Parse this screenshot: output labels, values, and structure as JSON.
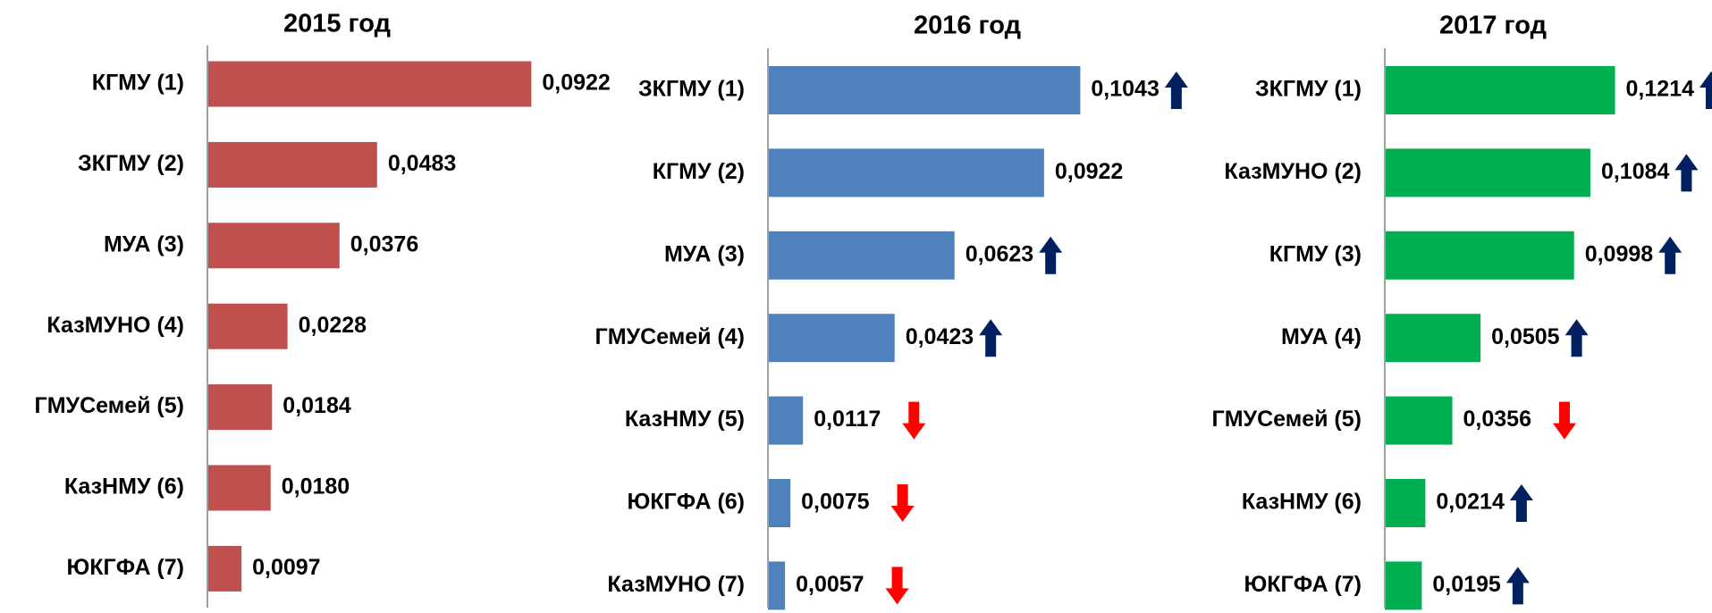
{
  "chart_data": [
    {
      "type": "bar",
      "orientation": "horizontal",
      "title": "2015 год",
      "categories": [
        "КГМУ (1)",
        "ЗКГМУ (2)",
        "МУА (3)",
        "КазМУНО (4)",
        "ГМУСемей (5)",
        "КазНМУ (6)",
        "ЮКГФА (7)"
      ],
      "values": [
        0.0922,
        0.0483,
        0.0376,
        0.0228,
        0.0184,
        0.018,
        0.0097
      ],
      "value_labels": [
        "0,0922",
        "0,0483",
        "0,0376",
        "0,0228",
        "0,0184",
        "0,0180",
        "0,0097"
      ],
      "color": "#c0504d",
      "xlim": [
        0,
        0.1
      ]
    },
    {
      "type": "bar",
      "orientation": "horizontal",
      "title": "2016 год",
      "categories": [
        "ЗКГМУ (1)",
        "КГМУ (2)",
        "МУА (3)",
        "ГМУСемей (4)",
        "КазНМУ (5)",
        "ЮКГФА (6)",
        "КазМУНО (7)"
      ],
      "values": [
        0.1043,
        0.0922,
        0.0623,
        0.0423,
        0.0117,
        0.0075,
        0.0057
      ],
      "value_labels": [
        "0,1043",
        "0,0922",
        "0,0623",
        "0,0423",
        "0,0117",
        "0,0075",
        "0,0057"
      ],
      "color": "#4f81bd",
      "xlim": [
        0,
        0.12
      ],
      "arrows": [
        "up",
        null,
        "up",
        "up",
        "down",
        "down",
        "down"
      ],
      "arrow_colors": {
        "up": "#002060",
        "down": "#ff0000"
      }
    },
    {
      "type": "bar",
      "orientation": "horizontal",
      "title": "2017 год",
      "categories": [
        "ЗКГМУ (1)",
        "КазМУНО (2)",
        "КГМУ (3)",
        "МУА (4)",
        "ГМУСемей (5)",
        "КазНМУ (6)",
        "ЮКГФА (7)"
      ],
      "values": [
        0.1214,
        0.1084,
        0.0998,
        0.0505,
        0.0356,
        0.0214,
        0.0195
      ],
      "value_labels": [
        "0,1214",
        "0,1084",
        "0,0998",
        "0,0505",
        "0,0356",
        "0,0214",
        "0,0195"
      ],
      "color": "#00b050",
      "xlim": [
        0,
        0.14
      ],
      "arrows": [
        "up",
        "up",
        "up",
        "up",
        "down",
        "up",
        "up"
      ],
      "arrow_colors": {
        "up": "#002060",
        "down": "#ff0000"
      }
    }
  ]
}
